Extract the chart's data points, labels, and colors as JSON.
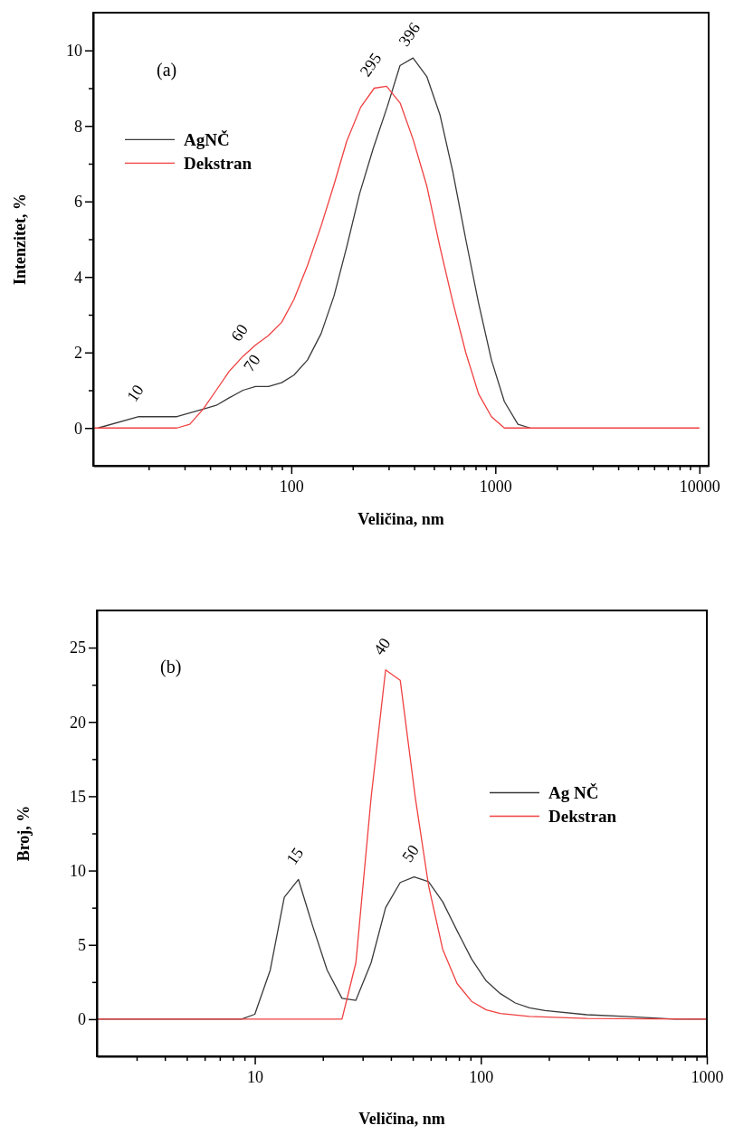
{
  "chart_data": [
    {
      "type": "line",
      "ylabel": "Intenzitet, %",
      "xlabel": "Veličina, nm",
      "log": "x",
      "legend": "top left",
      "xlim": [
        10.7,
        11100
      ],
      "ylim": [
        -1,
        11
      ],
      "xticks": [
        {
          "value": 20,
          "label": null
        },
        {
          "value": 30,
          "label": null
        },
        {
          "value": 40,
          "label": null
        },
        {
          "value": 50,
          "label": null
        },
        {
          "value": 60,
          "label": null
        },
        {
          "value": 70,
          "label": null
        },
        {
          "value": 80,
          "label": null
        },
        {
          "value": 90,
          "label": null
        },
        100,
        {
          "value": 200,
          "label": null
        },
        {
          "value": 300,
          "label": null
        },
        {
          "value": 400,
          "label": null
        },
        {
          "value": 500,
          "label": null
        },
        {
          "value": 600,
          "label": null
        },
        {
          "value": 700,
          "label": null
        },
        {
          "value": 800,
          "label": null
        },
        {
          "value": 900,
          "label": null
        },
        1000,
        {
          "value": 2000,
          "label": null
        },
        {
          "value": 3000,
          "label": null
        },
        {
          "value": 4000,
          "label": null
        },
        {
          "value": 5000,
          "label": null
        },
        {
          "value": 6000,
          "label": null
        },
        {
          "value": 7000,
          "label": null
        },
        {
          "value": 8000,
          "label": null
        },
        {
          "value": 9000,
          "label": null
        },
        10000
      ],
      "yticks": [
        0,
        {
          "value": 1,
          "label": null
        },
        2,
        {
          "value": 3,
          "label": null
        },
        4,
        {
          "value": 5,
          "label": null
        },
        6,
        {
          "value": 7,
          "label": null
        },
        8,
        {
          "value": 9,
          "label": null
        },
        10
      ],
      "annotations": [
        "(a)",
        {
          "text": "10",
          "x": 17.9,
          "y": 0.3
        },
        {
          "text": "60",
          "x": 58,
          "y": 1.9
        },
        {
          "text": "70",
          "x": 66.8,
          "y": 1.1
        },
        {
          "text": "295",
          "x": 255,
          "y": 9.0
        },
        {
          "text": "396",
          "x": 395,
          "y": 9.8
        }
      ],
      "series": [
        {
          "name": "AgNČ",
          "color": "#3a3a3a",
          "x": [
            11.3,
            17.9,
            27.5,
            37,
            42.9,
            49.6,
            58,
            66.8,
            77.3,
            89.7,
            103,
            120,
            140,
            162,
            187,
            216,
            252,
            295,
            341,
            395,
            462,
            535,
            618,
            716,
            828,
            957,
            1107,
            1290,
            1482
          ],
          "values": [
            0,
            0.3,
            0.3,
            0.5,
            0.6,
            0.8,
            1.0,
            1.1,
            1.1,
            1.2,
            1.4,
            1.8,
            2.5,
            3.5,
            4.8,
            6.2,
            7.4,
            8.5,
            9.6,
            9.8,
            9.3,
            8.3,
            6.8,
            5.0,
            3.3,
            1.8,
            0.7,
            0.1,
            0
          ]
        },
        {
          "name": "Dekstran",
          "color": "#f04040",
          "x": [
            10.7,
            27.5,
            31.8,
            37,
            42.9,
            49.6,
            58,
            66.8,
            77.3,
            89.7,
            103,
            120,
            140,
            162,
            187,
            219,
            255,
            293,
            342,
            395,
            462,
            535,
            618,
            716,
            828,
            957,
            1107,
            1482,
            10000
          ],
          "values": [
            0,
            0,
            0.1,
            0.5,
            1.0,
            1.5,
            1.9,
            2.2,
            2.45,
            2.8,
            3.4,
            4.3,
            5.35,
            6.45,
            7.6,
            8.5,
            9.0,
            9.05,
            8.6,
            7.65,
            6.4,
            4.8,
            3.35,
            2.0,
            0.9,
            0.3,
            0,
            0,
            0
          ]
        }
      ]
    },
    {
      "type": "line",
      "ylabel": "Broj, %",
      "xlabel": "Veličina, nm",
      "log": "x",
      "legend": "right",
      "xlim": [
        2,
        1000
      ],
      "ylim": [
        -2.5,
        27.5
      ],
      "xticks": [
        {
          "value": 3,
          "label": null
        },
        {
          "value": 4,
          "label": null
        },
        {
          "value": 5,
          "label": null
        },
        {
          "value": 6,
          "label": null
        },
        {
          "value": 7,
          "label": null
        },
        {
          "value": 8,
          "label": null
        },
        {
          "value": 9,
          "label": null
        },
        10,
        {
          "value": 20,
          "label": null
        },
        {
          "value": 30,
          "label": null
        },
        {
          "value": 40,
          "label": null
        },
        {
          "value": 50,
          "label": null
        },
        {
          "value": 60,
          "label": null
        },
        {
          "value": 70,
          "label": null
        },
        {
          "value": 80,
          "label": null
        },
        {
          "value": 90,
          "label": null
        },
        100,
        {
          "value": 200,
          "label": null
        },
        {
          "value": 300,
          "label": null
        },
        {
          "value": 400,
          "label": null
        },
        {
          "value": 500,
          "label": null
        },
        {
          "value": 600,
          "label": null
        },
        {
          "value": 700,
          "label": null
        },
        {
          "value": 800,
          "label": null
        },
        {
          "value": 900,
          "label": null
        },
        1000
      ],
      "yticks": [
        0,
        {
          "value": 2.5,
          "label": null
        },
        5,
        {
          "value": 7.5,
          "label": null
        },
        10,
        {
          "value": 12.5,
          "label": null
        },
        15,
        {
          "value": 17.5,
          "label": null
        },
        20,
        {
          "value": 22.5,
          "label": null
        },
        25
      ],
      "annotations": [
        "(b)",
        {
          "text": "15",
          "x": 15.6,
          "y": 9.4
        },
        {
          "text": "40",
          "x": 37.9,
          "y": 23.5
        },
        {
          "text": "50",
          "x": 50.7,
          "y": 9.57
        }
      ],
      "series": [
        {
          "name": "Ag NČ",
          "color": "#3a3a3a",
          "x": [
            2,
            8.73,
            10,
            11.7,
            13.5,
            15.6,
            18.0,
            20.9,
            24.3,
            28.0,
            32.7,
            37.9,
            44,
            50.7,
            58.7,
            67.8,
            78.5,
            91,
            105.6,
            122,
            142,
            164,
            192,
            294,
            434,
            719,
            1000
          ],
          "values": [
            0,
            0,
            0.33,
            3.3,
            8.2,
            9.4,
            6.3,
            3.3,
            1.4,
            1.27,
            3.8,
            7.5,
            9.2,
            9.57,
            9.25,
            7.9,
            5.95,
            4.05,
            2.58,
            1.72,
            1.09,
            0.76,
            0.58,
            0.3,
            0.18,
            0,
            0
          ]
        },
        {
          "name": "Dekstran",
          "color": "#f04040",
          "x": [
            2,
            24.3,
            28.0,
            32.7,
            37.9,
            44,
            51.3,
            58.7,
            67.8,
            78.5,
            91,
            105.6,
            122,
            164,
            294,
            1000
          ],
          "values": [
            0,
            0,
            3.8,
            14.9,
            23.5,
            22.8,
            14.9,
            9.0,
            4.7,
            2.4,
            1.2,
            0.63,
            0.38,
            0.18,
            0.05,
            0
          ]
        }
      ]
    }
  ]
}
